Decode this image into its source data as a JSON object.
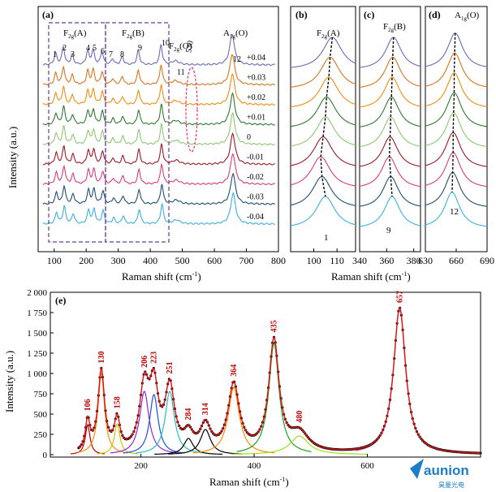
{
  "figure": {
    "panels": {
      "a": {
        "label": "(a)",
        "xlabel": "Raman shift (cm",
        "xlabel_sup": "-1",
        "xlabel_end": ")",
        "ylabel": "Intensity (a.u.)",
        "xticks": [
          "100",
          "200",
          "300",
          "400",
          "500",
          "600",
          "700",
          "800"
        ]
      },
      "b": {
        "label": "(b)",
        "xticks": [
          "100",
          "110"
        ]
      },
      "c": {
        "label": "(c)",
        "xticks": [
          "340",
          "360",
          "380"
        ]
      },
      "d": {
        "label": "(d)",
        "xticks": [
          "630",
          "660",
          "690"
        ]
      },
      "bcd_xlabel": "Raman shift (cm",
      "e": {
        "label": "(e)",
        "xlabel": "Raman shift (cm",
        "ylabel": "Intensity (a.u.)",
        "xticks": [
          "200",
          "400",
          "600"
        ],
        "yticks": [
          "0",
          "250",
          "500",
          "750",
          "1 000",
          "1 250",
          "1 500",
          "1 750",
          "2 000"
        ]
      }
    },
    "annotations_a": {
      "f2ga": "F",
      "f2ga_sub": "2g",
      "f2ga_end": "(A)",
      "f2gb": "F",
      "f2gb_sub": "2g",
      "f2gb_end": "(B)",
      "f2go": "F",
      "f2go_sub": "2g",
      "f2go_end": "(O)",
      "a1g": "A",
      "a1g_sub": "1g",
      "a1g_end": "(O)",
      "n530": "530",
      "nums": [
        "1",
        "2",
        "3",
        "4",
        "5",
        "6",
        "7",
        "8",
        "9",
        "10",
        "11",
        "12"
      ]
    },
    "annotations_bcd": {
      "b_title": "F",
      "b_sub": "2g",
      "b_end": "(A)",
      "b_num": "1",
      "c_title": "F",
      "c_sub": "2g",
      "c_end": "(B)",
      "c_num": "9",
      "d_title": "A",
      "d_sub": "1g",
      "d_end": "(O)",
      "d_num": "12"
    },
    "watermark": {
      "brand": "aunion",
      "sub": "昊量光电"
    }
  },
  "chart_data": [
    {
      "panel": "a",
      "type": "line",
      "title": "",
      "xlabel": "Raman shift (cm-1)",
      "ylabel": "Intensity (a.u.)",
      "xlim": [
        50,
        800
      ],
      "series": [
        {
          "name": "+0.04",
          "color": "#6a6ab8"
        },
        {
          "name": "+0.03",
          "color": "#d9741c"
        },
        {
          "name": "+0.02",
          "color": "#f08c10"
        },
        {
          "name": "+0.01",
          "color": "#2e7a2e"
        },
        {
          "name": "0",
          "color": "#8cc870"
        },
        {
          "name": "-0.01",
          "color": "#a01824"
        },
        {
          "name": "-0.02",
          "color": "#d83c7c"
        },
        {
          "name": "-0.03",
          "color": "#1f4f75"
        },
        {
          "name": "-0.04",
          "color": "#3cb0e0"
        }
      ],
      "peaks_cm1": [
        106,
        130,
        158,
        206,
        223,
        251,
        284,
        314,
        364,
        435,
        480,
        657
      ],
      "peak_heights": [
        0.35,
        0.55,
        0.3,
        0.42,
        0.45,
        0.4,
        0.18,
        0.25,
        0.45,
        0.62,
        0.12,
        0.95
      ]
    },
    {
      "panel": "b",
      "type": "line",
      "xlim": [
        90,
        118
      ],
      "peak_label": "1",
      "peak_centers": [
        108,
        107,
        106.5,
        105.5,
        105,
        104,
        103,
        103.5,
        105
      ]
    },
    {
      "panel": "c",
      "type": "line",
      "xlim": [
        340,
        385
      ],
      "peak_label": "9",
      "peak_centers": [
        365,
        364.5,
        364,
        363.5,
        363,
        362.5,
        362,
        363,
        364
      ]
    },
    {
      "panel": "d",
      "type": "line",
      "xlim": [
        630,
        690
      ],
      "peak_label": "12",
      "peak_centers": [
        659,
        658.5,
        658,
        658,
        657.5,
        657,
        657,
        656.5,
        656
      ]
    },
    {
      "panel": "e",
      "type": "line",
      "xlabel": "Raman shift (cm-1)",
      "ylabel": "Intensity (a.u.)",
      "xlim": [
        40,
        800
      ],
      "ylim": [
        0,
        2000
      ],
      "peak_labels": [
        "106",
        "130",
        "158",
        "206",
        "223",
        "251",
        "284",
        "314",
        "364",
        "435",
        "480",
        "657"
      ],
      "components": [
        {
          "center": 106,
          "height": 370,
          "width": 5,
          "color": "#c00000"
        },
        {
          "center": 130,
          "height": 1000,
          "width": 7,
          "color": "#ff8c00"
        },
        {
          "center": 158,
          "height": 380,
          "width": 6,
          "color": "#c8c800"
        },
        {
          "center": 206,
          "height": 780,
          "width": 10,
          "color": "#8a2be2"
        },
        {
          "center": 223,
          "height": 740,
          "width": 9,
          "color": "#2050e0"
        },
        {
          "center": 251,
          "height": 780,
          "width": 10,
          "color": "#20c0c0"
        },
        {
          "center": 284,
          "height": 200,
          "width": 10,
          "color": "#000000"
        },
        {
          "center": 314,
          "height": 310,
          "width": 11,
          "color": "#000000"
        },
        {
          "center": 364,
          "height": 830,
          "width": 12,
          "color": "#ff8c00"
        },
        {
          "center": 435,
          "height": 1370,
          "width": 11,
          "color": "#20a020"
        },
        {
          "center": 480,
          "height": 230,
          "width": 20,
          "color": "#a0e020"
        },
        {
          "center": 657,
          "height": 1800,
          "width": 13,
          "color": "#c060c0"
        }
      ]
    }
  ]
}
